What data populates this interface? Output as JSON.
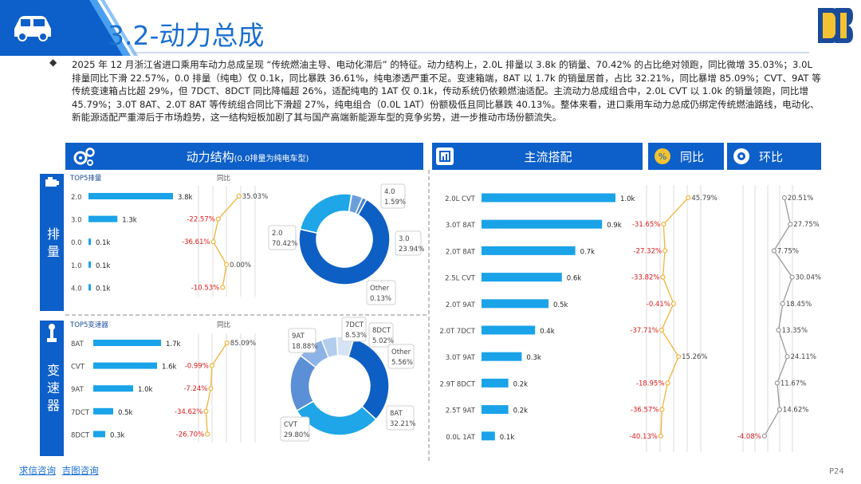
{
  "header": {
    "title": "3.2-动力总成",
    "paragraph": "2025 年 12 月浙江省进口乘用车动力总成呈现 “传统燃油主导、电动化滞后” 的特征。动力结构上，2.0L 排量以 3.8k 的销量、70.42% 的占比绝对领跑，同比微增 35.03%；3.0L 排量同比下滑 22.57%，0.0 排量（纯电）仅 0.1k，同比暴跌 36.61%，纯电渗透严重不足。变速箱端，8AT 以 1.7k 的销量居首，占比 32.21%，同比暴增 85.09%；CVT、9AT 等传统变速箱占比超 29%，但 7DCT、8DCT 同比降幅超 26%，适配纯电的 1AT 仅 0.1k，传动系统仍依赖燃油适配。主流动力总成组合中，2.0L CVT 以 1.0k 的销量领跑，同比增 45.79%；3.0T 8AT、2.0T 8AT 等传统组合同比下滑超 27%，纯电组合（0.0L 1AT）份额极低且同比暴跌 40.13%。整体来看，进口乘用车动力总成仍绑定传统燃油路线，电动化、新能源适配严重滞后于市场趋势，这一结构短板加剧了其与国产高端新能源车型的竞争劣势，进一步推动市场份额流失。"
  },
  "sections": {
    "power_title": "动力结构",
    "power_sub": "(0.0排量为纯电车型)",
    "combo_title": "主流搭配",
    "yoy_title": "同比",
    "mom_title": "环比",
    "disp_side": "排量",
    "trans_side": "变速器",
    "disp_top5": "TOP5排量",
    "trans_top5": "TOP5变速器",
    "yoy_small": "同比"
  },
  "footer": {
    "link1": "求信咨询",
    "link2": "吉图咨询",
    "page": "P24"
  },
  "colors": {
    "primary": "#0d5fc9",
    "bar": "#1aa3e8",
    "line": "#f0b33a",
    "neg": "#e0191a",
    "grey_line": "#9a9a9a"
  },
  "chart_data": [
    {
      "type": "bar",
      "name": "disp_bars",
      "title": "TOP5排量",
      "categories": [
        "2.0",
        "3.0",
        "0.0",
        "1.0",
        "4.0"
      ],
      "values": [
        3.8,
        1.3,
        0.1,
        0.1,
        0.1
      ],
      "labels": [
        "3.8k",
        "1.3k",
        "0.1k",
        "0.1k",
        "0.1k"
      ]
    },
    {
      "type": "line",
      "name": "disp_yoy",
      "title": "同比",
      "categories": [
        "2.0",
        "3.0",
        "0.0",
        "1.0",
        "4.0"
      ],
      "values": [
        35.03,
        -22.57,
        -36.61,
        0.0,
        -10.53
      ],
      "labels": [
        "35.03%",
        "-22.57%",
        "-36.61%",
        "0.00%",
        "-10.53%"
      ]
    },
    {
      "type": "pie",
      "name": "disp_donut",
      "slices": [
        {
          "label": "2.0",
          "pct": "70.42%",
          "value": 70.42,
          "color": "#0e5fc4"
        },
        {
          "label": "3.0",
          "pct": "23.94%",
          "value": 23.94,
          "color": "#1ea6e8"
        },
        {
          "label": "Other",
          "pct": "0.13%",
          "value": 0.13,
          "color": "#9fc2e8"
        },
        {
          "label": "",
          "pct": "",
          "value": 3.92,
          "color": "#6a9fdc"
        },
        {
          "label": "4.0",
          "pct": "1.59%",
          "value": 1.59,
          "color": "#4a86d6"
        }
      ]
    },
    {
      "type": "bar",
      "name": "trans_bars",
      "title": "TOP5变速器",
      "categories": [
        "8AT",
        "CVT",
        "9AT",
        "7DCT",
        "8DCT"
      ],
      "values": [
        1.7,
        1.6,
        1.0,
        0.5,
        0.3
      ],
      "labels": [
        "1.7k",
        "1.6k",
        "1.0k",
        "0.5k",
        "0.3k"
      ]
    },
    {
      "type": "line",
      "name": "trans_yoy",
      "title": "同比",
      "categories": [
        "8AT",
        "CVT",
        "9AT",
        "7DCT",
        "8DCT"
      ],
      "values": [
        85.09,
        -0.99,
        -7.24,
        -34.62,
        -26.7
      ],
      "labels": [
        "85.09%",
        "-0.99%",
        "-7.24%",
        "-34.62%",
        "-26.70%"
      ]
    },
    {
      "type": "pie",
      "name": "trans_donut",
      "slices": [
        {
          "label": "8AT",
          "pct": "32.21%",
          "value": 32.21,
          "color": "#0e5fc4"
        },
        {
          "label": "CVT",
          "pct": "29.80%",
          "value": 29.8,
          "color": "#1ea6e8"
        },
        {
          "label": "9AT",
          "pct": "18.88%",
          "value": 18.88,
          "color": "#5b8fd6"
        },
        {
          "label": "7DCT",
          "pct": "8.53%",
          "value": 8.53,
          "color": "#8db3e6"
        },
        {
          "label": "8DCT",
          "pct": "5.02%",
          "value": 5.02,
          "color": "#b3cdef"
        },
        {
          "label": "Other",
          "pct": "5.56%",
          "value": 5.56,
          "color": "#d6e3f5"
        }
      ]
    },
    {
      "type": "bar",
      "name": "combo_bars",
      "title": "主流搭配",
      "categories": [
        "2.0L CVT",
        "3.0T 8AT",
        "2.0T 8AT",
        "2.5L CVT",
        "2.0T 9AT",
        "2.0T 7DCT",
        "3.0T 9AT",
        "2.9T 8DCT",
        "2.5T 9AT",
        "0.0L 1AT"
      ],
      "values": [
        1.0,
        0.9,
        0.7,
        0.6,
        0.5,
        0.4,
        0.3,
        0.2,
        0.2,
        0.1
      ],
      "labels": [
        "1.0k",
        "0.9k",
        "0.7k",
        "0.6k",
        "0.5k",
        "0.4k",
        "0.3k",
        "0.2k",
        "0.2k",
        "0.1k"
      ]
    },
    {
      "type": "line",
      "name": "combo_yoy",
      "title": "同比",
      "values": [
        45.79,
        -31.65,
        -27.32,
        -33.82,
        -0.41,
        -37.71,
        15.26,
        -18.95,
        -36.57,
        -40.13
      ],
      "labels": [
        "45.79%",
        "-31.65%",
        "-27.32%",
        "-33.82%",
        "-0.41%",
        "-37.71%",
        "15.26%",
        "-18.95%",
        "-36.57%",
        "-40.13%"
      ]
    },
    {
      "type": "line",
      "name": "combo_mom",
      "title": "环比",
      "values": [
        20.51,
        27.75,
        7.75,
        30.04,
        18.45,
        13.35,
        24.11,
        11.67,
        14.62,
        -4.08
      ],
      "labels": [
        "20.51%",
        "27.75%",
        "7.75%",
        "30.04%",
        "18.45%",
        "13.35%",
        "24.11%",
        "11.67%",
        "14.62%",
        "-4.08%"
      ]
    }
  ]
}
